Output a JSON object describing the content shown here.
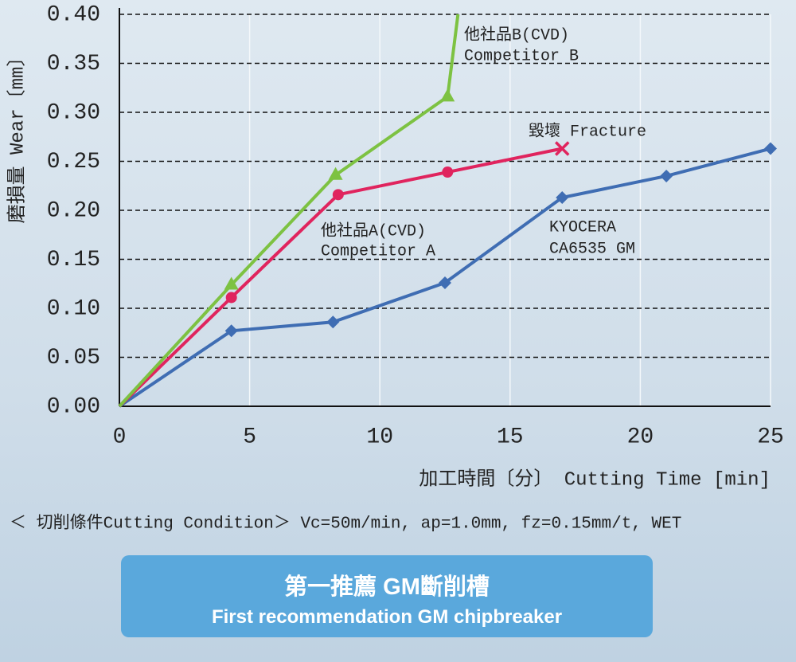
{
  "chart_data": {
    "type": "line",
    "y_axis_title": "磨損量 Wear〔mm〕",
    "x_axis_title": "加工時間〔分〕 Cutting Time [min]",
    "xlim": [
      0,
      25
    ],
    "ylim": [
      0,
      0.4
    ],
    "xticks": [
      0,
      5,
      10,
      15,
      20,
      25
    ],
    "yticks": [
      {
        "value": 0,
        "label": "0.00"
      },
      {
        "value": 0.05,
        "label": "0.05"
      },
      {
        "value": 0.1,
        "label": "0.10"
      },
      {
        "value": 0.15,
        "label": "0.15"
      },
      {
        "value": 0.2,
        "label": "0.20"
      },
      {
        "value": 0.25,
        "label": "0.25"
      },
      {
        "value": 0.3,
        "label": "0.30"
      },
      {
        "value": 0.35,
        "label": "0.35"
      },
      {
        "value": 0.4,
        "label": "0.40"
      }
    ],
    "grid": true,
    "series": [
      {
        "name": "KYOCERA CA6535 GM",
        "color": "#3f6db3",
        "marker": "diamond",
        "last_marker": "diamond",
        "x": [
          0,
          4.3,
          8.2,
          12.5,
          17,
          21,
          25
        ],
        "values": [
          0,
          0.077,
          0.086,
          0.126,
          0.213,
          0.235,
          0.263
        ]
      },
      {
        "name": "Competitor A",
        "color": "#e0245e",
        "marker": "circle",
        "last_marker": "cross",
        "x": [
          0,
          4.3,
          8.4,
          12.6,
          17
        ],
        "values": [
          0,
          0.111,
          0.216,
          0.239,
          0.263
        ]
      },
      {
        "name": "Competitor B",
        "color": "#7dc242",
        "marker": "triangle",
        "last_marker": "none",
        "x": [
          0,
          4.3,
          8.3,
          12.6,
          13
        ],
        "values": [
          0,
          0.124,
          0.236,
          0.316,
          0.4
        ]
      }
    ],
    "annotations": [
      "他社品B(CVD)",
      "Competitor B",
      "毀壞 Fracture",
      "他社品A(CVD)",
      "Competitor A",
      "KYOCERA",
      "CA6535 GM"
    ],
    "condition": "＜ 切削條件Cutting Condition＞ Vc=50m/min, ap=1.0mm, fz=0.15mm/t, WET"
  },
  "banner": {
    "title": "第一推薦 GM斷削槽",
    "subtitle": "First recommendation GM chipbreaker"
  }
}
